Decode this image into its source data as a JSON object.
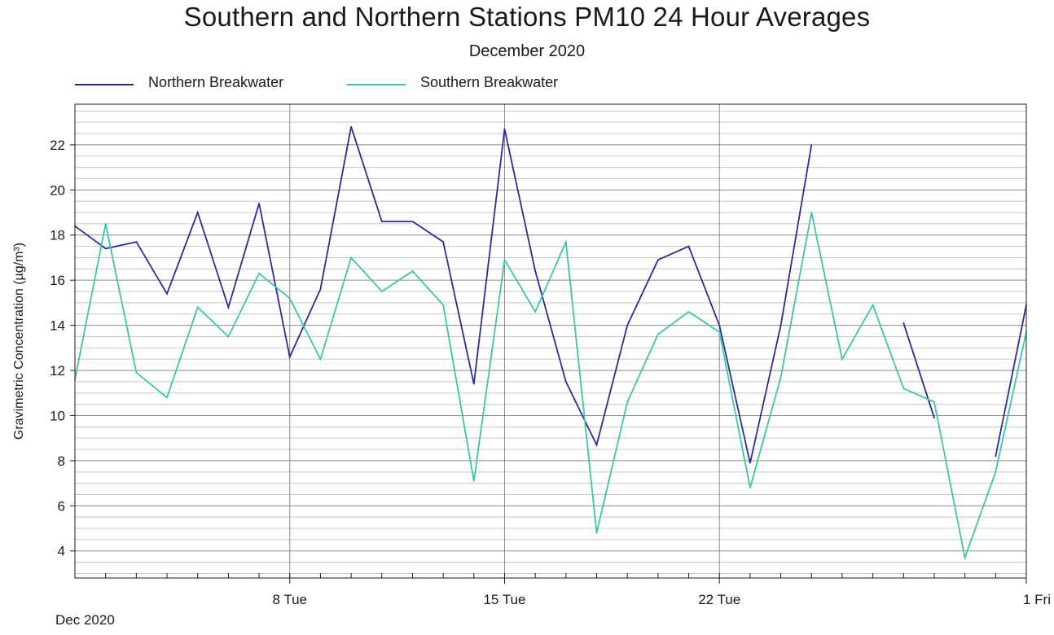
{
  "chart_data": {
    "type": "line",
    "title": "Southern and Northern Stations PM10 24 Hour Averages",
    "subtitle": "December 2020",
    "ylabel": "Gravimetric Concentration (µg/m³)",
    "xlabel": "",
    "x_period_label": "Dec 2020",
    "ylim": [
      2.8,
      23.8
    ],
    "y_ticks": [
      4,
      6,
      8,
      10,
      12,
      14,
      16,
      18,
      20,
      22
    ],
    "y_minor_step": 0.5,
    "x_range_days": [
      1,
      32
    ],
    "x_ticks": [
      {
        "day": 8,
        "label": "8 Tue"
      },
      {
        "day": 15,
        "label": "15 Tue"
      },
      {
        "day": 22,
        "label": "22 Tue"
      },
      {
        "day": 32,
        "label": "1 Fri"
      }
    ],
    "grid": true,
    "legend_position": "top-left",
    "series": [
      {
        "name": "Northern Breakwater",
        "color": "#2b2b9a",
        "points": [
          [
            1,
            18.4
          ],
          [
            2,
            17.4
          ],
          [
            3,
            17.7
          ],
          [
            4,
            15.4
          ],
          [
            5,
            19.0
          ],
          [
            6,
            14.8
          ],
          [
            7,
            19.4
          ],
          [
            8,
            12.6
          ],
          [
            9,
            15.6
          ],
          [
            10,
            22.8
          ],
          [
            11,
            18.6
          ],
          [
            12,
            18.6
          ],
          [
            13,
            17.7
          ],
          [
            14,
            11.4
          ],
          [
            15,
            22.7
          ],
          [
            16,
            16.4
          ],
          [
            17,
            11.5
          ],
          [
            18,
            8.7
          ],
          [
            19,
            14.0
          ],
          [
            20,
            16.9
          ],
          [
            21,
            17.5
          ],
          [
            22,
            14.0
          ],
          [
            23,
            7.9
          ],
          [
            24,
            14.0
          ],
          [
            25,
            22.0
          ],
          [
            26,
            null
          ],
          [
            27,
            null
          ],
          [
            28,
            14.1
          ],
          [
            29,
            9.9
          ],
          [
            30,
            null
          ],
          [
            31,
            8.2
          ],
          [
            32,
            14.9
          ]
        ]
      },
      {
        "name": "Southern Breakwater",
        "color": "#3cc6a6",
        "points": [
          [
            1,
            11.6
          ],
          [
            2,
            18.5
          ],
          [
            3,
            11.9
          ],
          [
            4,
            10.8
          ],
          [
            5,
            14.8
          ],
          [
            6,
            13.5
          ],
          [
            7,
            16.3
          ],
          [
            8,
            15.2
          ],
          [
            9,
            12.5
          ],
          [
            10,
            17.0
          ],
          [
            11,
            15.5
          ],
          [
            12,
            16.4
          ],
          [
            13,
            14.9
          ],
          [
            14,
            7.1
          ],
          [
            15,
            16.9
          ],
          [
            16,
            14.6
          ],
          [
            17,
            17.7
          ],
          [
            18,
            4.8
          ],
          [
            19,
            10.6
          ],
          [
            20,
            13.6
          ],
          [
            21,
            14.6
          ],
          [
            22,
            13.7
          ],
          [
            23,
            6.8
          ],
          [
            24,
            11.7
          ],
          [
            25,
            19.0
          ],
          [
            26,
            12.5
          ],
          [
            27,
            14.9
          ],
          [
            28,
            11.2
          ],
          [
            29,
            10.6
          ],
          [
            30,
            3.7
          ],
          [
            31,
            7.5
          ],
          [
            32,
            13.7
          ]
        ]
      }
    ]
  }
}
